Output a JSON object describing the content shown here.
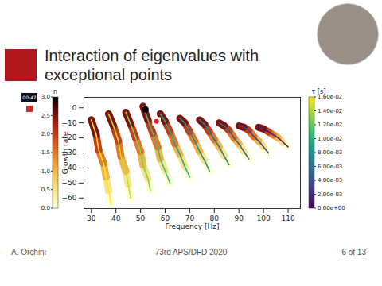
{
  "slide": {
    "title": "Interaction of eigenvalues with exceptional points",
    "timer": "00:47",
    "footer": {
      "author": "A. Orchini",
      "event": "73rd APS/DFD 2020",
      "page": "6 of 13"
    }
  },
  "chart_data": {
    "type": "line",
    "x_label": "Frequency [Hz]",
    "y_label": "Growth rate",
    "xlim": [
      27,
      115
    ],
    "ylim": [
      -67,
      7
    ],
    "xticks": [
      30,
      40,
      50,
      60,
      70,
      80,
      90,
      100,
      110
    ],
    "yticks": [
      0,
      -10,
      -20,
      -30,
      -40,
      -50,
      -60
    ],
    "series": [
      {
        "tau": 0.016,
        "n": [
          0,
          0.5,
          1,
          1.5,
          2,
          2.5,
          3
        ],
        "x": [
          38,
          37,
          36,
          35,
          33,
          32,
          30
        ],
        "y": [
          -64,
          -55,
          -46,
          -37,
          -28,
          -18,
          -8
        ]
      },
      {
        "tau": 0.0144,
        "n": [
          0,
          0.5,
          1,
          1.5,
          2,
          2.5,
          3
        ],
        "x": [
          46,
          45,
          44,
          42,
          41,
          39,
          37
        ],
        "y": [
          -60,
          -51,
          -42,
          -32,
          -22,
          -12,
          -4
        ]
      },
      {
        "tau": 0.0128,
        "n": [
          0,
          0.5,
          1,
          1.5,
          2,
          2.5,
          3
        ],
        "x": [
          54,
          53,
          51,
          50,
          48,
          46,
          44
        ],
        "y": [
          -55,
          -47,
          -38,
          -29,
          -20,
          -11,
          -3
        ]
      },
      {
        "tau": 0.0112,
        "n": [
          0,
          0.5,
          1,
          1.5,
          2,
          2.5,
          3
        ],
        "x": [
          62,
          60,
          58,
          57,
          55,
          53,
          51
        ],
        "y": [
          -50,
          -42,
          -34,
          -26,
          -17,
          -8,
          1
        ]
      },
      {
        "tau": 0.0096,
        "n": [
          0,
          0.5,
          1,
          1.5,
          2,
          2.5,
          3
        ],
        "x": [
          70,
          68,
          66,
          64,
          62,
          60,
          58
        ],
        "y": [
          -46,
          -39,
          -31,
          -24,
          -16,
          -9,
          -4
        ]
      },
      {
        "tau": 0.008,
        "n": [
          0,
          0.5,
          1,
          1.5,
          2,
          2.5,
          3
        ],
        "x": [
          78,
          76,
          74,
          72,
          70,
          68,
          66
        ],
        "y": [
          -42,
          -35,
          -29,
          -22,
          -16,
          -10,
          -7
        ]
      },
      {
        "tau": 0.0064,
        "n": [
          0,
          0.5,
          1,
          1.5,
          2,
          2.5,
          3
        ],
        "x": [
          86,
          84,
          82,
          80,
          78,
          76,
          74
        ],
        "y": [
          -38,
          -32,
          -26,
          -21,
          -16,
          -11,
          -8
        ]
      },
      {
        "tau": 0.0048,
        "n": [
          0,
          0.5,
          1,
          1.5,
          2,
          2.5,
          3
        ],
        "x": [
          94,
          92,
          90,
          88,
          86,
          84,
          82
        ],
        "y": [
          -34,
          -29,
          -24,
          -20,
          -15,
          -12,
          -10
        ]
      },
      {
        "tau": 0.0032,
        "n": [
          0,
          0.5,
          1,
          1.5,
          2,
          2.5,
          3
        ],
        "x": [
          102,
          100,
          98,
          96,
          94,
          92,
          90
        ],
        "y": [
          -30,
          -26,
          -22,
          -19,
          -15,
          -13,
          -12
        ]
      },
      {
        "tau": 0.0016,
        "n": [
          0,
          0.5,
          1,
          1.5,
          2,
          2.5,
          3
        ],
        "x": [
          110,
          108,
          106,
          104,
          102,
          100,
          98
        ],
        "y": [
          -26,
          -23,
          -20,
          -18,
          -16,
          -14,
          -13
        ]
      }
    ],
    "points": [
      {
        "x": 52,
        "y": -1,
        "color": "#000000"
      },
      {
        "x": 56.5,
        "y": -9,
        "color": "#e41a1c"
      }
    ],
    "color_bars": [
      {
        "label": "n",
        "range": [
          0,
          3
        ],
        "ticks": [
          {
            "value": 0,
            "label": "0.0"
          },
          {
            "value": 0.5,
            "label": "0.5"
          },
          {
            "value": 1,
            "label": "1.0"
          },
          {
            "value": 1.5,
            "label": "1.5"
          },
          {
            "value": 2,
            "label": "2.0"
          },
          {
            "value": 2.5,
            "label": "2.5"
          },
          {
            "value": 3,
            "label": "3.0"
          }
        ]
      },
      {
        "label": "τ [s]",
        "range": [
          0,
          0.016
        ],
        "ticks": [
          {
            "value": 0,
            "label": "0.00e+00"
          },
          {
            "value": 0.002,
            "label": "2.00e-03"
          },
          {
            "value": 0.004,
            "label": "4.00e-03"
          },
          {
            "value": 0.006,
            "label": "6.00e-03"
          },
          {
            "value": 0.008,
            "label": "8.00e-03"
          },
          {
            "value": 0.01,
            "label": "1.00e-02"
          },
          {
            "value": 0.012,
            "label": "1.20e-02"
          },
          {
            "value": 0.014,
            "label": "1.40e-02"
          },
          {
            "value": 0.016,
            "label": "1.60e-02"
          }
        ]
      }
    ]
  }
}
